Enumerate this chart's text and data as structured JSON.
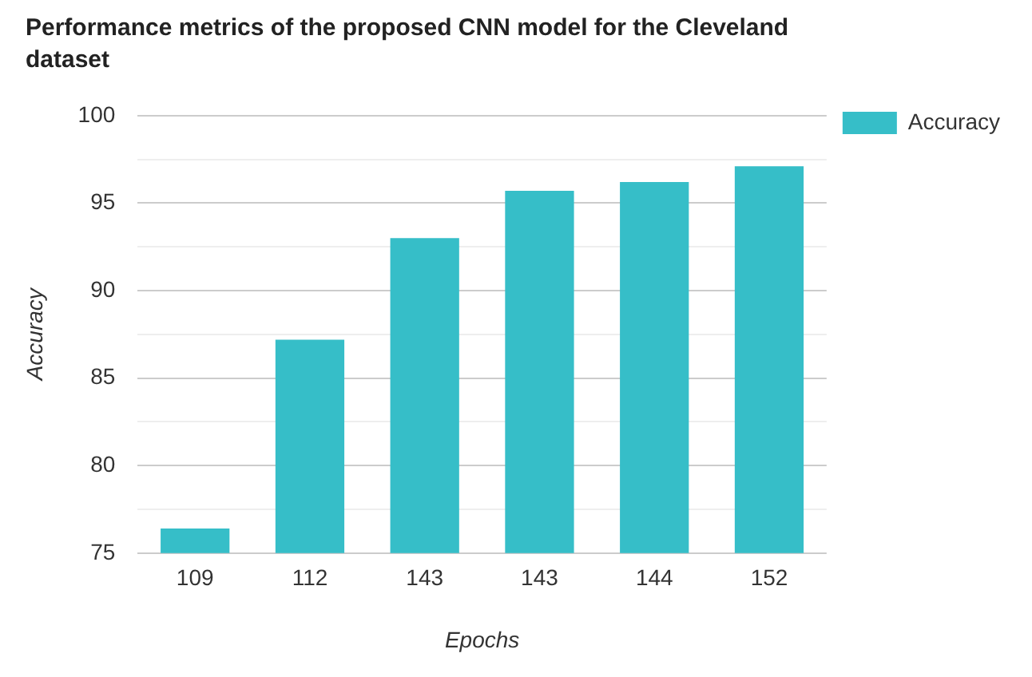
{
  "chart_data": {
    "type": "bar",
    "title": "Performance metrics of the proposed CNN model for the Cleveland dataset",
    "xlabel": "Epochs",
    "ylabel": "Accuracy",
    "categories": [
      "109",
      "112",
      "143",
      "143",
      "144",
      "152"
    ],
    "series": [
      {
        "name": "Accuracy",
        "color": "#36bec8",
        "values": [
          76.4,
          87.2,
          93.0,
          95.7,
          96.2,
          97.1
        ]
      }
    ],
    "ylim": [
      75,
      100
    ],
    "yticks": [
      75,
      {
        "value": 77.5,
        "label": null
      },
      80,
      {
        "value": 82.5,
        "label": null
      },
      85,
      {
        "value": 87.5,
        "label": null
      },
      90,
      {
        "value": 92.5,
        "label": null
      },
      95,
      {
        "value": 97.5,
        "label": null
      },
      100
    ],
    "grid": "y",
    "legend": "top right"
  }
}
